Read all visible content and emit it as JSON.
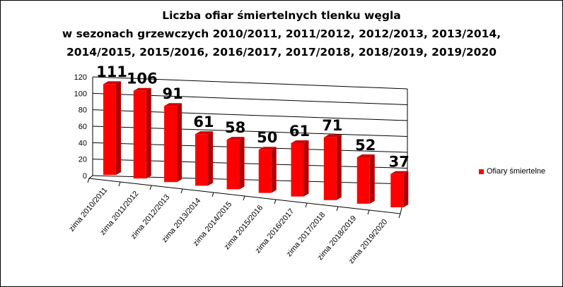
{
  "chart_data": {
    "type": "bar",
    "title": [
      "Liczba ofiar śmiertelnych tlenku węgla",
      "w sezonach grzewczych 2010/2011, 2011/2012, 2012/2013, 2013/2014,",
      "2014/2015, 2015/2016, 2016/2017, 2017/2018, 2018/2019, 2019/2020"
    ],
    "categories": [
      "zima 2010/2011",
      "zima 2011/2012",
      "zima 2012/2013",
      "zima 2013/2014",
      "zima 2014/2015",
      "zima 2015/2016",
      "zima 2016/2017",
      "zima 2017/2018",
      "zima 2018/2019",
      "zima 2019/2020"
    ],
    "series": [
      {
        "name": "Ofiary śmiertelne",
        "values": [
          111,
          106,
          91,
          61,
          58,
          50,
          61,
          71,
          52,
          37
        ],
        "color": "#ff0000"
      }
    ],
    "ylim": [
      0,
      120
    ],
    "yticks": [
      "0",
      "20",
      "40",
      "60",
      "80",
      "100",
      "120"
    ],
    "grid": true,
    "legend": "right",
    "style": "3d"
  }
}
